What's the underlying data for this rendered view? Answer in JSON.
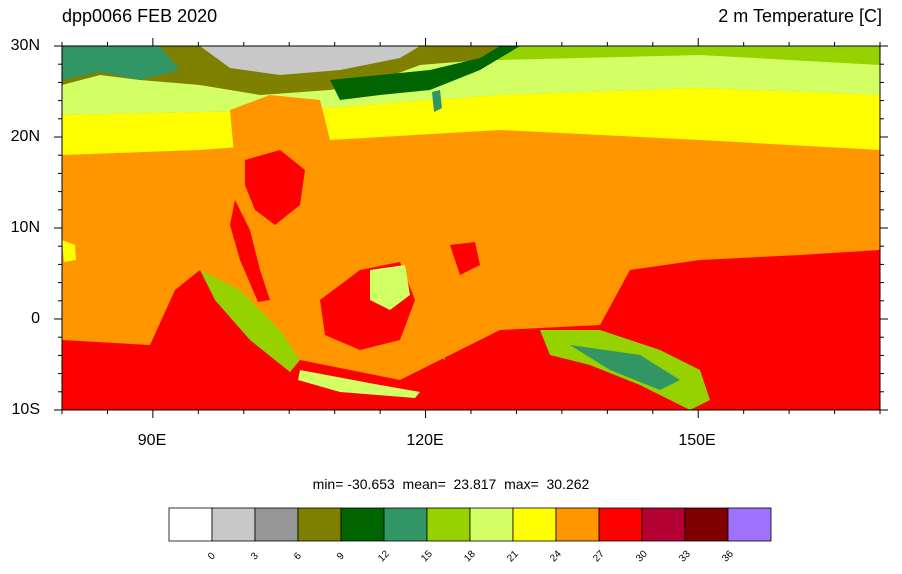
{
  "header": {
    "left_title": "dpp0066 FEB 2020",
    "right_title": "2 m Temperature [C]"
  },
  "map": {
    "lon_range": [
      80,
      170
    ],
    "lat_range": [
      -10,
      30
    ],
    "lat_ticks": [
      "30N",
      "20N",
      "10N",
      "0",
      "10S"
    ],
    "lon_ticks": [
      "90E",
      "120E",
      "150E"
    ]
  },
  "stats": {
    "text": "min= -30.653  mean=  23.817  max=  30.262"
  },
  "colorbar": {
    "colors": [
      "#ffffff",
      "#c8c8c8",
      "#969696",
      "#7f7f00",
      "#006400",
      "#329664",
      "#96d200",
      "#d2ff64",
      "#ffff00",
      "#ff9600",
      "#ff0000",
      "#b40032",
      "#800000",
      "#a070ff"
    ],
    "labels": [
      "0",
      "3",
      "6",
      "9",
      "12",
      "15",
      "18",
      "21",
      "24",
      "27",
      "30",
      "33",
      "36"
    ]
  }
}
